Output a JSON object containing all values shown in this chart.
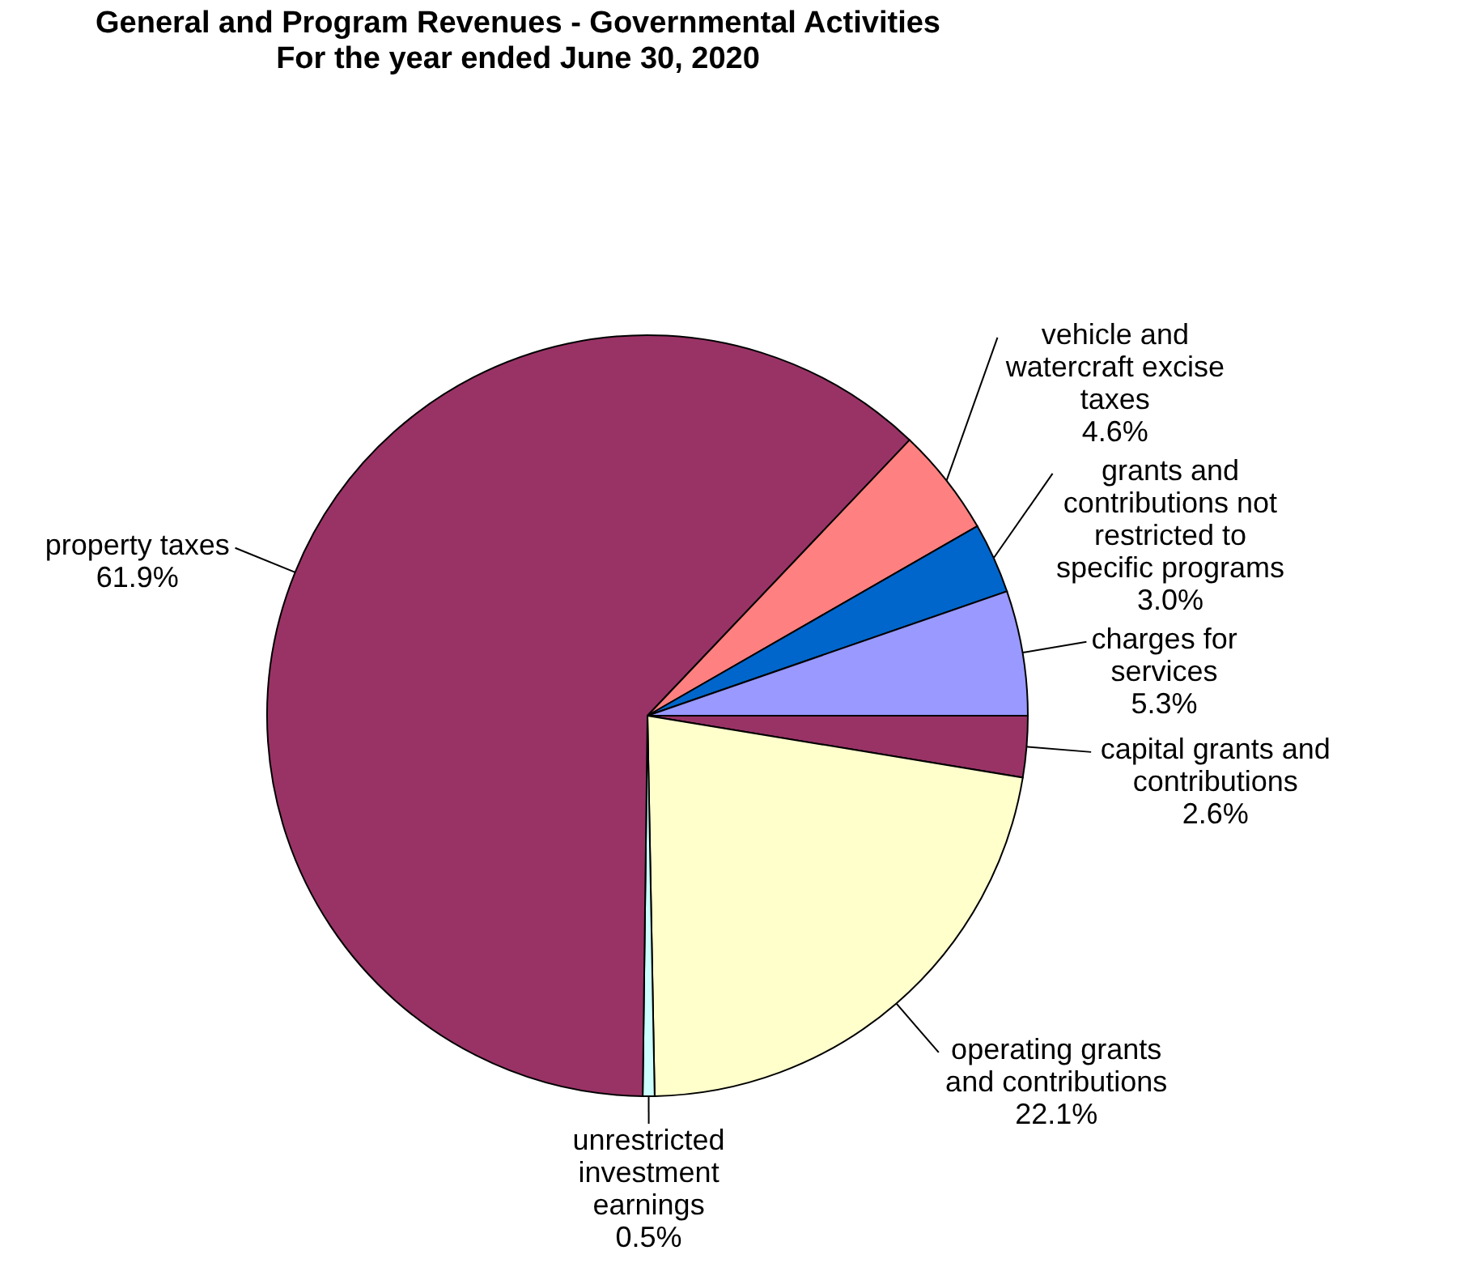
{
  "chart_data": {
    "type": "pie",
    "title": "General and Program Revenues - Governmental Activities",
    "subtitle": "For the year ended June 30, 2020",
    "categories": [
      "capital grants and contributions",
      "operating grants and contributions",
      "unrestricted investment earnings",
      "property taxes",
      "vehicle and watercraft excise taxes",
      "grants and contributions not restricted to specific programs",
      "charges for services"
    ],
    "values": [
      2.6,
      22.1,
      0.5,
      61.9,
      4.6,
      3.0,
      5.3
    ],
    "value_labels": [
      "2.6%",
      "22.1%",
      "0.5%",
      "61.9%",
      "4.6%",
      "3.0%",
      "5.3%"
    ],
    "colors": [
      "#993366",
      "#ffffcc",
      "#ccffff",
      "#993366",
      "#ff8080",
      "#0066cc",
      "#9999ff"
    ]
  }
}
